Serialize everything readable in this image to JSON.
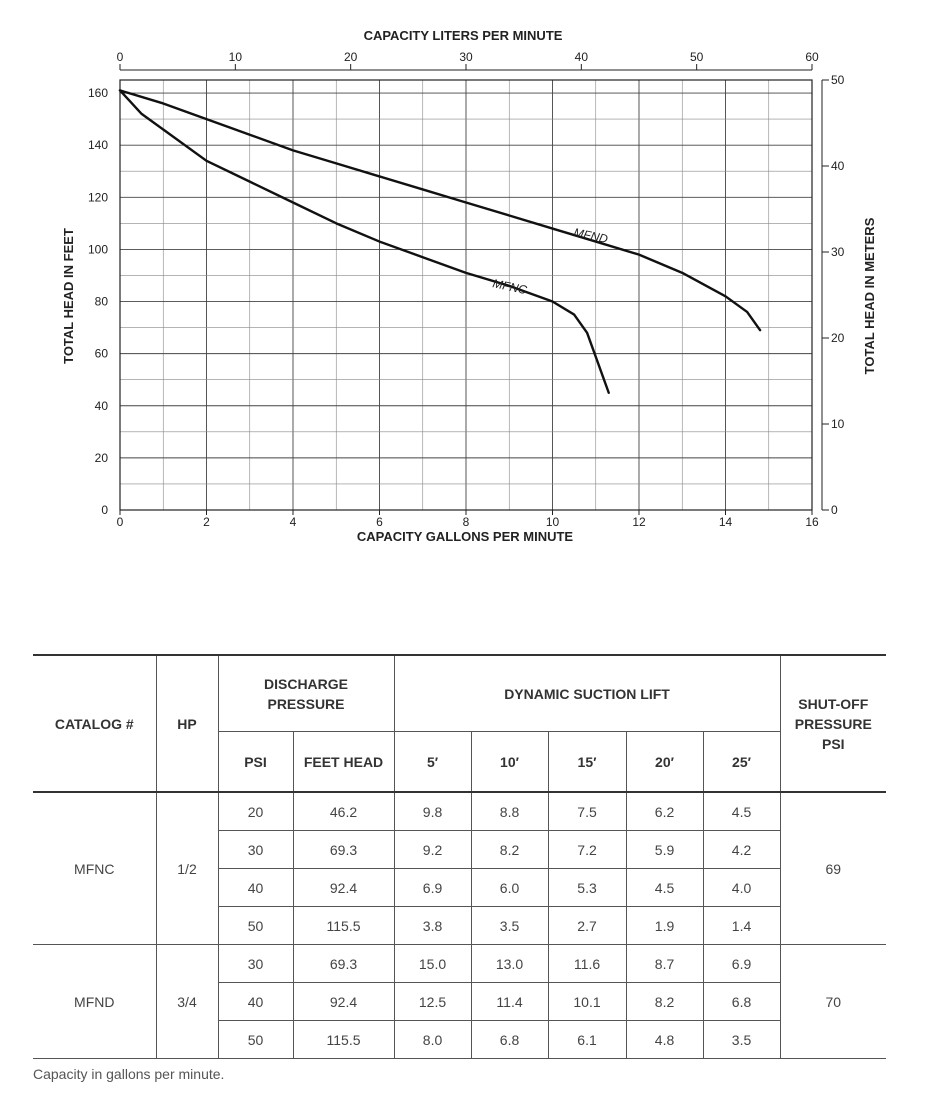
{
  "chart_data": {
    "type": "line",
    "xlabel": "CAPACITY GALLONS PER MINUTE",
    "x2label": "CAPACITY LITERS PER MINUTE",
    "ylabel": "TOTAL HEAD IN FEET",
    "y2label": "TOTAL HEAD IN METERS",
    "xlim": [
      0,
      16
    ],
    "x2lim": [
      0,
      60
    ],
    "ylim": [
      0,
      165
    ],
    "y2lim": [
      0,
      50
    ],
    "xticks": [
      0,
      2,
      4,
      6,
      8,
      10,
      12,
      14,
      16
    ],
    "x2ticks": [
      0,
      10,
      20,
      30,
      40,
      50,
      60
    ],
    "yticks": [
      0,
      20,
      40,
      60,
      80,
      100,
      120,
      140,
      160
    ],
    "y2ticks": [
      0,
      10,
      20,
      30,
      40,
      50
    ],
    "grid": true,
    "series": [
      {
        "name": "MFND",
        "x": [
          0,
          1,
          2,
          3,
          4,
          5,
          6,
          7,
          8,
          9,
          10,
          11,
          12,
          13,
          14,
          14.5,
          14.8
        ],
        "y": [
          161,
          156,
          150,
          144,
          138,
          133,
          128,
          123,
          118,
          113,
          108,
          103,
          98,
          91,
          82,
          76,
          69
        ]
      },
      {
        "name": "MFNC",
        "x": [
          0,
          0.5,
          1,
          2,
          3,
          4,
          5,
          6,
          7,
          8,
          9,
          10,
          10.5,
          10.8,
          11.3
        ],
        "y": [
          161,
          152,
          146,
          134,
          126,
          118,
          110,
          103,
          97,
          91,
          86,
          80,
          75,
          68,
          45
        ]
      }
    ]
  },
  "table": {
    "headers": {
      "catalog": "CATALOG #",
      "hp": "HP",
      "discharge": "DISCHARGE PRESSURE",
      "suction": "DYNAMIC SUCTION LIFT",
      "shutoff": "SHUT-OFF PRESSURE PSI",
      "psi": "PSI",
      "feet_head": "FEET HEAD",
      "lifts": [
        "5′",
        "10′",
        "15′",
        "20′",
        "25′"
      ]
    },
    "groups": [
      {
        "catalog": "MFNC",
        "hp": "1/2",
        "shutoff": "69",
        "rows": [
          {
            "psi": "20",
            "feet": "46.2",
            "lift": [
              "9.8",
              "8.8",
              "7.5",
              "6.2",
              "4.5"
            ]
          },
          {
            "psi": "30",
            "feet": "69.3",
            "lift": [
              "9.2",
              "8.2",
              "7.2",
              "5.9",
              "4.2"
            ]
          },
          {
            "psi": "40",
            "feet": "92.4",
            "lift": [
              "6.9",
              "6.0",
              "5.3",
              "4.5",
              "4.0"
            ]
          },
          {
            "psi": "50",
            "feet": "115.5",
            "lift": [
              "3.8",
              "3.5",
              "2.7",
              "1.9",
              "1.4"
            ]
          }
        ]
      },
      {
        "catalog": "MFND",
        "hp": "3/4",
        "shutoff": "70",
        "rows": [
          {
            "psi": "30",
            "feet": "69.3",
            "lift": [
              "15.0",
              "13.0",
              "11.6",
              "8.7",
              "6.9"
            ]
          },
          {
            "psi": "40",
            "feet": "92.4",
            "lift": [
              "12.5",
              "11.4",
              "10.1",
              "8.2",
              "6.8"
            ]
          },
          {
            "psi": "50",
            "feet": "115.5",
            "lift": [
              "8.0",
              "6.8",
              "6.1",
              "4.8",
              "3.5"
            ]
          }
        ]
      }
    ]
  },
  "footnote": "Capacity in gallons per minute."
}
